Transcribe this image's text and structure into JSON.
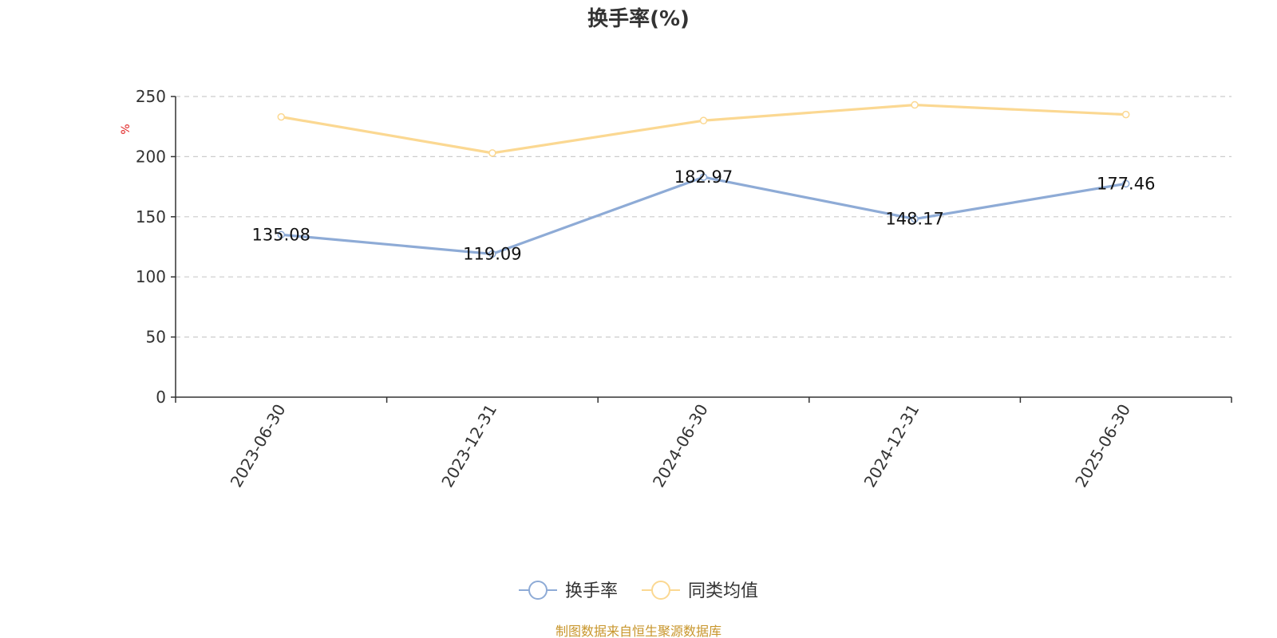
{
  "chart_data": {
    "type": "line",
    "title": "换手率(%)",
    "ylabel": "%",
    "ylim": [
      0,
      250
    ],
    "yticks": [
      0,
      50,
      100,
      150,
      200,
      250
    ],
    "categories": [
      "2023-06-30",
      "2023-12-31",
      "2024-06-30",
      "2024-12-31",
      "2025-06-30"
    ],
    "series": [
      {
        "name": "换手率",
        "color": "#8eabd6",
        "values": [
          135.08,
          119.09,
          182.97,
          148.17,
          177.46
        ],
        "labels": [
          "135.08",
          "119.09",
          "182.97",
          "148.17",
          "177.46"
        ]
      },
      {
        "name": "同类均值",
        "color": "#fbd892",
        "values": [
          233,
          203,
          230,
          243,
          235
        ]
      }
    ],
    "grid": true,
    "legend_position": "bottom-center"
  },
  "footer": {
    "source": "制图数据来自恒生聚源数据库"
  },
  "colors": {
    "unit_label": "#e02020",
    "source_text": "#c8962c",
    "grid": "#cccccc",
    "axis": "#333333"
  }
}
